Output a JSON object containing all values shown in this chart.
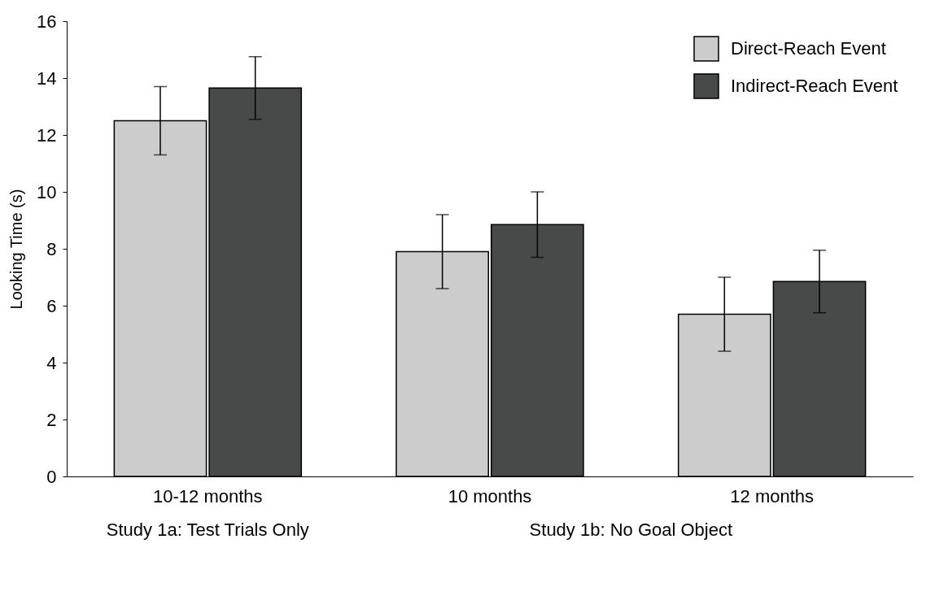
{
  "chart_data": {
    "type": "bar",
    "ylabel": "Looking Time (s)",
    "categories": [
      "10-12 months",
      "10 months",
      "12 months"
    ],
    "series": [
      {
        "name": "Direct-Reach Event",
        "color": "#cbcccb",
        "values": [
          12.5,
          7.9,
          5.7
        ],
        "errors": [
          1.2,
          1.3,
          1.3
        ]
      },
      {
        "name": "Indirect-Reach Event",
        "color": "#484a4a",
        "values": [
          13.65,
          8.85,
          6.85
        ],
        "errors": [
          1.1,
          1.15,
          1.1
        ]
      }
    ],
    "ylim": [
      0,
      16
    ],
    "yticks": [
      0,
      2,
      4,
      6,
      8,
      10,
      12,
      14,
      16
    ],
    "grid": false,
    "legend": "top right",
    "annotations": [
      "Study 1a: Test Trials Only",
      "Study 1b: No Goal Object"
    ]
  }
}
